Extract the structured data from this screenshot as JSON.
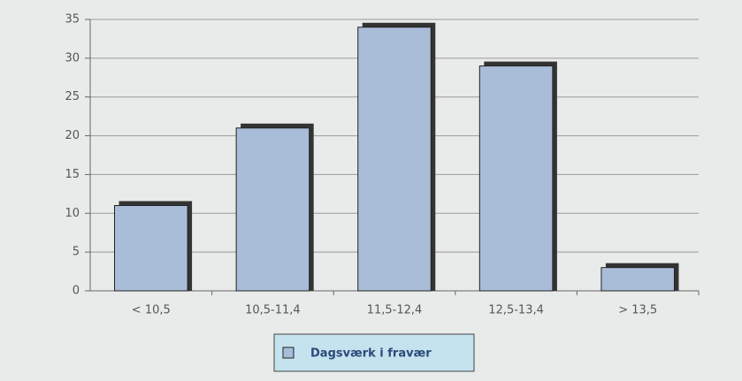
{
  "chart_data": {
    "type": "bar",
    "categories": [
      "< 10,5",
      "10,5-11,4",
      "11,5-12,4",
      "12,5-13,4",
      "> 13,5"
    ],
    "series": [
      {
        "name": "Dagsværk i fravær",
        "color": "#a9bdd9",
        "values": [
          11,
          21,
          34,
          29,
          3
        ]
      }
    ],
    "ylim": [
      0,
      35
    ],
    "yticks": [
      0,
      5,
      10,
      15,
      20,
      25,
      30,
      35
    ],
    "grid": true,
    "legend": "bottom"
  }
}
